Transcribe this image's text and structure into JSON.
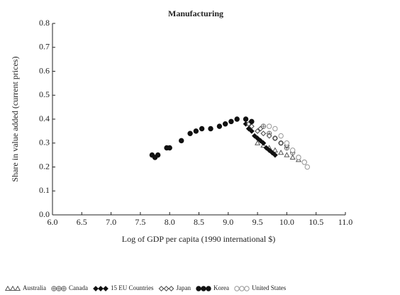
{
  "chart_data": {
    "type": "scatter",
    "title": "Manufacturing",
    "xlabel": "Log of GDP per capita (1990 international $)",
    "ylabel": "Share in value added (current prices)",
    "xlim": [
      6,
      11
    ],
    "ylim": [
      0,
      0.8
    ],
    "xticks": [
      {
        "value": 6,
        "label": "6.0"
      },
      6.5,
      {
        "value": 7,
        "label": "7.0"
      },
      7.5,
      {
        "value": 8,
        "label": "8.0"
      },
      8.5,
      {
        "value": 9,
        "label": "9.0"
      },
      9.5,
      {
        "value": 10,
        "label": "10.0"
      },
      10.5,
      {
        "value": 11,
        "label": "11.0"
      }
    ],
    "yticks": [
      {
        "value": 0,
        "label": "0.0"
      },
      0.1,
      0.2,
      0.3,
      0.4,
      0.5,
      0.6,
      0.7,
      0.8
    ],
    "series": [
      {
        "name": "Australia",
        "marker": "triangle",
        "color": "#555555",
        "x": [
          9.5,
          9.6,
          9.7,
          9.8,
          9.9,
          10.0,
          10.1,
          10.2
        ],
        "values": [
          0.3,
          0.29,
          0.28,
          0.27,
          0.26,
          0.25,
          0.24,
          0.23
        ]
      },
      {
        "name": "Canada",
        "marker": "circle-plus",
        "color": "#777777",
        "x": [
          9.6,
          9.7,
          9.8,
          9.9,
          10.0,
          10.1,
          10.2,
          10.3
        ],
        "values": [
          0.37,
          0.34,
          0.32,
          0.3,
          0.28,
          0.26,
          0.24,
          0.22
        ]
      },
      {
        "name": "15 EU Countries",
        "marker": "diamond",
        "color": "#111111",
        "x": [
          9.3,
          9.35,
          9.4,
          9.45,
          9.5,
          9.55,
          9.6,
          9.65,
          9.7,
          9.75,
          9.8
        ],
        "values": [
          0.38,
          0.36,
          0.35,
          0.33,
          0.32,
          0.31,
          0.3,
          0.28,
          0.27,
          0.26,
          0.25
        ]
      },
      {
        "name": "Japan",
        "marker": "diamond-open",
        "color": "#444444",
        "x": [
          9.35,
          9.4,
          9.5,
          9.55,
          9.6,
          9.7,
          9.8,
          9.9,
          10.0
        ],
        "values": [
          0.38,
          0.37,
          0.35,
          0.36,
          0.34,
          0.33,
          0.32,
          0.3,
          0.29
        ]
      },
      {
        "name": "Korea",
        "marker": "circle",
        "color": "#111111",
        "x": [
          7.7,
          7.75,
          7.8,
          7.95,
          8.0,
          8.2,
          8.35,
          8.45,
          8.55,
          8.7,
          8.85,
          8.95,
          9.05,
          9.15,
          9.3,
          9.4
        ],
        "values": [
          0.25,
          0.24,
          0.25,
          0.28,
          0.28,
          0.31,
          0.34,
          0.35,
          0.36,
          0.36,
          0.37,
          0.38,
          0.39,
          0.4,
          0.4,
          0.39
        ]
      },
      {
        "name": "United States",
        "marker": "circle-open",
        "color": "#999999",
        "x": [
          9.7,
          9.8,
          9.9,
          10.0,
          10.1,
          10.2,
          10.3,
          10.35
        ],
        "values": [
          0.37,
          0.36,
          0.33,
          0.3,
          0.27,
          0.24,
          0.22,
          0.2
        ]
      }
    ]
  }
}
